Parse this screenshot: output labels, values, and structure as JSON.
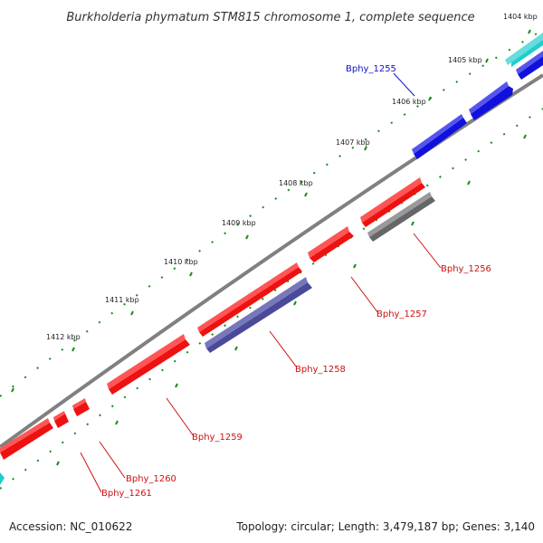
{
  "title": "Burkholderia phymatum STM815 chromosome 1, complete sequence",
  "footer": {
    "accession": "Accession: NC_010622",
    "summary": "Topology: circular; Length: 3,479,187 bp; Genes: 3,140"
  },
  "colors": {
    "backbone": "#808080",
    "tick": "#1a8a1a",
    "red": "#ee1111",
    "blue": "#1111dd",
    "cyan": "#22cccc",
    "dark_gray": "#666666",
    "slate": "#4a4a99"
  },
  "ruler_ticks": [
    "1404 kbp",
    "1405 kbp",
    "1406 kbp",
    "1407 kbp",
    "1408 kbp",
    "1409 kbp",
    "1410 kbp",
    "1411 kbp",
    "1412 kbp"
  ],
  "genes": [
    {
      "id": "g1255",
      "label": "Bphy_1255",
      "color": "blue",
      "label_color": "#1111cc"
    },
    {
      "id": "g1256",
      "label": "Bphy_1256",
      "color": "red",
      "label_color": "#cc1111"
    },
    {
      "id": "g1257",
      "label": "Bphy_1257",
      "color": "red",
      "label_color": "#cc1111"
    },
    {
      "id": "g1258",
      "label": "Bphy_1258",
      "color": "red",
      "label_color": "#cc1111"
    },
    {
      "id": "g1259",
      "label": "Bphy_1259",
      "color": "red",
      "label_color": "#cc1111"
    },
    {
      "id": "g1260",
      "label": "Bphy_1260",
      "color": "red",
      "label_color": "#cc1111"
    },
    {
      "id": "g1261",
      "label": "Bphy_1261",
      "color": "red",
      "label_color": "#cc1111"
    }
  ]
}
